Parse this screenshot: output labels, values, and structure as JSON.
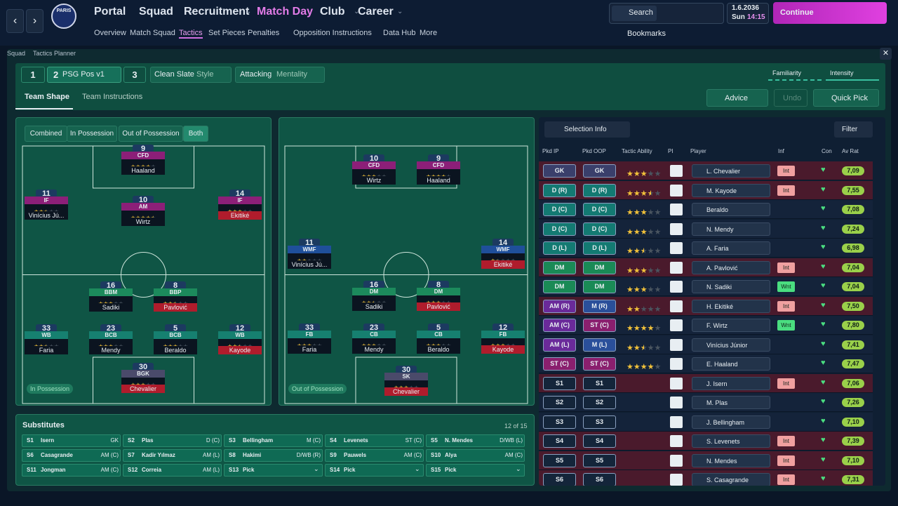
{
  "logo": "PARIS",
  "menu": [
    "Portal",
    "Squad",
    "Recruitment",
    "Match Day",
    "Club",
    "Career"
  ],
  "submenu": [
    "Overview",
    "Match Squad",
    "Tactics",
    "Set Pieces",
    "Penalties",
    "Opposition Instructions",
    "Data Hub",
    "More"
  ],
  "search": "Search",
  "date": {
    "date": "1.6.2036",
    "day": "Sun",
    "time": "14:15"
  },
  "continue": "Continue",
  "bookmarks": "Bookmarks",
  "breadcrumb": [
    "Squad",
    "Tactics Planner"
  ],
  "tactic_slots": [
    {
      "number": "1"
    },
    {
      "number": "2",
      "name": "PSG Pos v1"
    },
    {
      "number": "3"
    }
  ],
  "style": {
    "value": "Clean Slate",
    "label": "Style"
  },
  "mentality": {
    "value": "Attacking",
    "label": "Mentality"
  },
  "familiarity": "Familiarity",
  "intensity": "Intensity",
  "tabs": [
    "Team Shape",
    "Team Instructions"
  ],
  "actions": [
    "Advice",
    "Undo",
    "Quick Pick"
  ],
  "view_modes": [
    "Combined",
    "In Possession",
    "Out of Possession",
    "Both"
  ],
  "pitches": [
    {
      "label": "In Possession",
      "players": [
        {
          "number": "9",
          "role": "CFD",
          "stars": 4,
          "name": "Haaland"
        },
        {
          "number": "11",
          "role": "IF",
          "stars": 2.5,
          "name": "Vinícius Jú..."
        },
        {
          "number": "10",
          "role": "AM",
          "stars": 4.5,
          "name": "Wirtz"
        },
        {
          "number": "14",
          "role": "IF",
          "stars": 3,
          "name": "Ekitiké"
        },
        {
          "number": "16",
          "role": "BBM",
          "stars": 3,
          "name": "Sadiki"
        },
        {
          "number": "8",
          "role": "BBP",
          "stars": 2.5,
          "name": "Pavlović"
        },
        {
          "number": "33",
          "role": "WB",
          "stars": 2.5,
          "name": "Faria"
        },
        {
          "number": "23",
          "role": "BCB",
          "stars": 3,
          "name": "Mendy"
        },
        {
          "number": "5",
          "role": "BCB",
          "stars": 3,
          "name": "Beraldo"
        },
        {
          "number": "12",
          "role": "WB",
          "stars": 2.5,
          "name": "Kayode"
        },
        {
          "number": "30",
          "role": "BGK",
          "stars": 3,
          "name": "Chevalier"
        }
      ]
    },
    {
      "label": "Out of Possession",
      "players": [
        {
          "number": "10",
          "role": "CFD",
          "stars": 3,
          "name": "Wirtz"
        },
        {
          "number": "9",
          "role": "CFD",
          "stars": 4,
          "name": "Haaland"
        },
        {
          "number": "11",
          "role": "WMF",
          "stars": 2,
          "name": "Vinícius Jú..."
        },
        {
          "number": "14",
          "role": "WMF",
          "stars": 1.5,
          "name": "Ekitiké"
        },
        {
          "number": "16",
          "role": "DM",
          "stars": 2.5,
          "name": "Sadiki"
        },
        {
          "number": "8",
          "role": "DM",
          "stars": 3,
          "name": "Pavlović"
        },
        {
          "number": "33",
          "role": "FB",
          "stars": 3,
          "name": "Faria"
        },
        {
          "number": "23",
          "role": "CB",
          "stars": 3,
          "name": "Mendy"
        },
        {
          "number": "5",
          "role": "CB",
          "stars": 3,
          "name": "Beraldo"
        },
        {
          "number": "12",
          "role": "FB",
          "stars": 3,
          "name": "Kayode"
        },
        {
          "number": "30",
          "role": "SK",
          "stars": 3,
          "name": "Chevalier"
        }
      ]
    }
  ],
  "substitutes": {
    "title": "Substitutes",
    "count": "12 of 15",
    "slots": [
      {
        "slot": "S1",
        "name": "Isern",
        "position": "GK"
      },
      {
        "slot": "S2",
        "name": "Plas",
        "position": "D (C)"
      },
      {
        "slot": "S3",
        "name": "Bellingham",
        "position": "M (C)"
      },
      {
        "slot": "S4",
        "name": "Levenets",
        "position": "ST (C)"
      },
      {
        "slot": "S5",
        "name": "N. Mendes",
        "position": "D/WB (L)"
      },
      {
        "slot": "S6",
        "name": "Casagrande",
        "position": "AM (C)"
      },
      {
        "slot": "S7",
        "name": "Kadir Yılmaz",
        "position": "AM (L)"
      },
      {
        "slot": "S8",
        "name": "Hakimi",
        "position": "D/WB (R)"
      },
      {
        "slot": "S9",
        "name": "Pauwels",
        "position": "AM (C)"
      },
      {
        "slot": "S10",
        "name": "Alya",
        "position": "AM (C)"
      },
      {
        "slot": "S11",
        "name": "Jongman",
        "position": "AM (C)"
      },
      {
        "slot": "S12",
        "name": "Correia",
        "position": "AM (L)"
      },
      {
        "slot": "S13",
        "name": "Pick"
      },
      {
        "slot": "S14",
        "name": "Pick"
      },
      {
        "slot": "S15",
        "name": "Pick"
      }
    ]
  },
  "selection": {
    "info": "Selection Info",
    "filter": "Filter",
    "columns": [
      "Pkd IP",
      "Pkd OOP",
      "Tactic Ability",
      "PI",
      "Player",
      "Inf",
      "Con",
      "Av Rat"
    ],
    "rows": [
      {
        "ip": "GK",
        "oop": "GK",
        "stars": 3,
        "player": "L. Chevalier",
        "inf": "Int",
        "rating": "7,09"
      },
      {
        "ip": "D (R)",
        "oop": "D (R)",
        "stars": 3.5,
        "player": "M. Kayode",
        "inf": "Int",
        "rating": "7,55"
      },
      {
        "ip": "D (C)",
        "oop": "D (C)",
        "stars": 3,
        "player": "Beraldo",
        "rating": "7,08"
      },
      {
        "ip": "D (C)",
        "oop": "D (C)",
        "stars": 3,
        "player": "N. Mendy",
        "rating": "7,24"
      },
      {
        "ip": "D (L)",
        "oop": "D (L)",
        "stars": 2.5,
        "player": "A. Faria",
        "rating": "6,98"
      },
      {
        "ip": "DM",
        "oop": "DM",
        "stars": 3,
        "player": "A. Pavlović",
        "inf": "Int",
        "rating": "7,04"
      },
      {
        "ip": "DM",
        "oop": "DM",
        "stars": 3,
        "player": "N. Sadiki",
        "inf": "Wnt",
        "rating": "7,04"
      },
      {
        "ip": "AM (R)",
        "oop": "M (R)",
        "stars": 2,
        "player": "H. Ekitiké",
        "inf": "Int",
        "rating": "7,50"
      },
      {
        "ip": "AM (C)",
        "oop": "ST (C)",
        "stars": 4,
        "player": "F. Wirtz",
        "inf": "Wnt",
        "rating": "7,80"
      },
      {
        "ip": "AM (L)",
        "oop": "M (L)",
        "stars": 2.5,
        "player": "Vinícius Júnior",
        "rating": "7,41"
      },
      {
        "ip": "ST (C)",
        "oop": "ST (C)",
        "stars": 4,
        "player": "E. Haaland",
        "rating": "7,47"
      },
      {
        "ip": "S1",
        "oop": "S1",
        "player": "J. Isern",
        "inf": "Int",
        "rating": "7,06"
      },
      {
        "ip": "S2",
        "oop": "S2",
        "player": "M. Plas",
        "rating": "7,26"
      },
      {
        "ip": "S3",
        "oop": "S3",
        "player": "J. Bellingham",
        "rating": "7,10"
      },
      {
        "ip": "S4",
        "oop": "S4",
        "player": "S. Levenets",
        "inf": "Int",
        "rating": "7,39"
      },
      {
        "ip": "S5",
        "oop": "S5",
        "player": "N. Mendes",
        "inf": "Int",
        "rating": "7,10"
      },
      {
        "ip": "S6",
        "oop": "S6",
        "player": "S. Casagrande",
        "inf": "Int",
        "rating": "7,31"
      }
    ]
  }
}
